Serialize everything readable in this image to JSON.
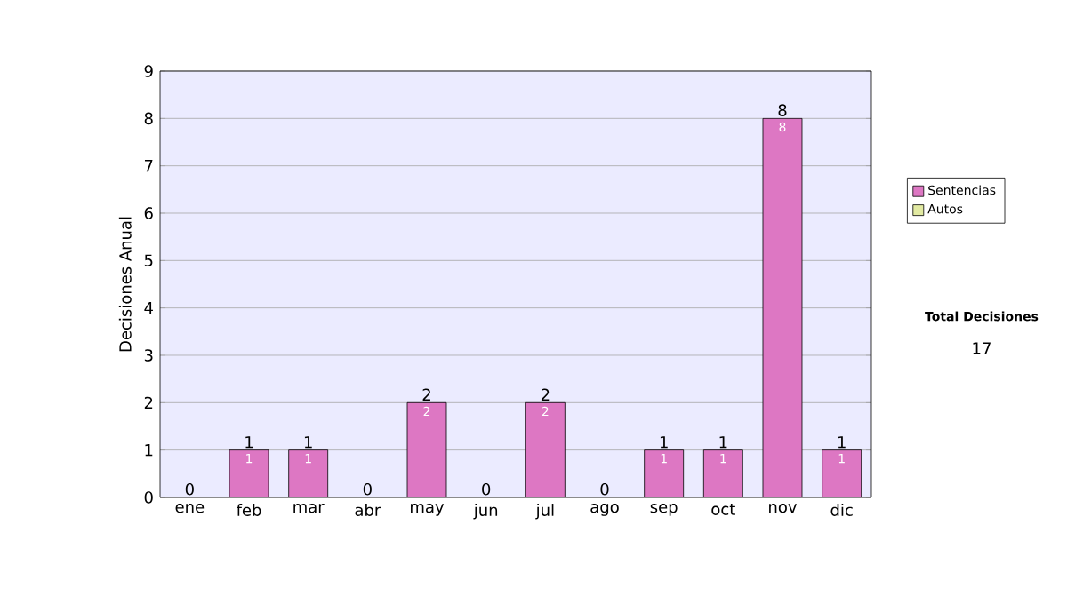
{
  "chart_data": {
    "type": "bar",
    "stacked": true,
    "ylabel": "Decisiones Anual",
    "categories": [
      "ene",
      "feb",
      "mar",
      "abr",
      "may",
      "jun",
      "jul",
      "ago",
      "sep",
      "oct",
      "nov",
      "dic"
    ],
    "series": [
      {
        "name": "Sentencias",
        "color": "#dd77c3",
        "values": [
          0,
          1,
          1,
          0,
          2,
          0,
          2,
          0,
          1,
          1,
          8,
          1
        ],
        "value_labels": [
          null,
          "1",
          "1",
          null,
          "2",
          null,
          "2",
          null,
          "1",
          "1",
          "8",
          "1"
        ]
      },
      {
        "name": "Autos",
        "color": "#e2eaa2",
        "values": [
          0,
          0,
          0,
          0,
          0,
          0,
          0,
          0,
          0,
          0,
          0,
          0
        ]
      }
    ],
    "totals": [
      "0",
      "1",
      "1",
      "0",
      "2",
      "0",
      "2",
      "0",
      "1",
      "1",
      "8",
      "1"
    ],
    "ylim": [
      0,
      9
    ],
    "yticks": [
      0,
      1,
      2,
      3,
      4,
      5,
      6,
      7,
      8,
      9
    ],
    "grid": "y",
    "legend": "right",
    "annotations": [
      "Total Decisiones",
      "17"
    ]
  }
}
